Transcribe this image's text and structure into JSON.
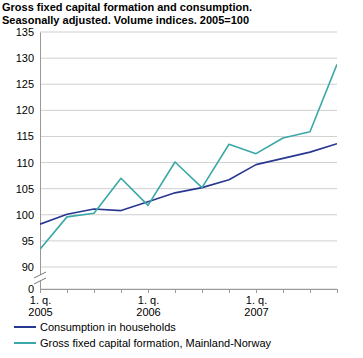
{
  "chart_data": {
    "type": "line",
    "title": "Gross fixed capital formation and consumption.",
    "subtitle": "Seasonally adjusted. Volume indices. 2005=100",
    "categories": [
      "1. q.\n2005",
      null,
      null,
      null,
      "1. q.\n2006",
      null,
      null,
      null,
      "1. q.\n2007",
      null,
      null,
      null
    ],
    "series": [
      {
        "name": "Consumption in households",
        "color": "#283891",
        "values": [
          98.2,
          100.1,
          101.1,
          100.8,
          102.5,
          104.2,
          105.2,
          106.7,
          109.6,
          110.8,
          112.0,
          113.6
        ]
      },
      {
        "name": "Gross fixed capital formation, Mainland-Norway",
        "color": "#3aa8a6",
        "values": [
          93.4,
          99.6,
          100.3,
          107.0,
          101.8,
          110.1,
          105.2,
          113.5,
          111.7,
          114.7,
          115.9,
          128.8
        ]
      }
    ],
    "ylim": [
      0,
      135
    ],
    "yticks": [
      0,
      90,
      95,
      100,
      105,
      110,
      115,
      120,
      125,
      130,
      135
    ],
    "grid": true,
    "legend": "bottom"
  }
}
